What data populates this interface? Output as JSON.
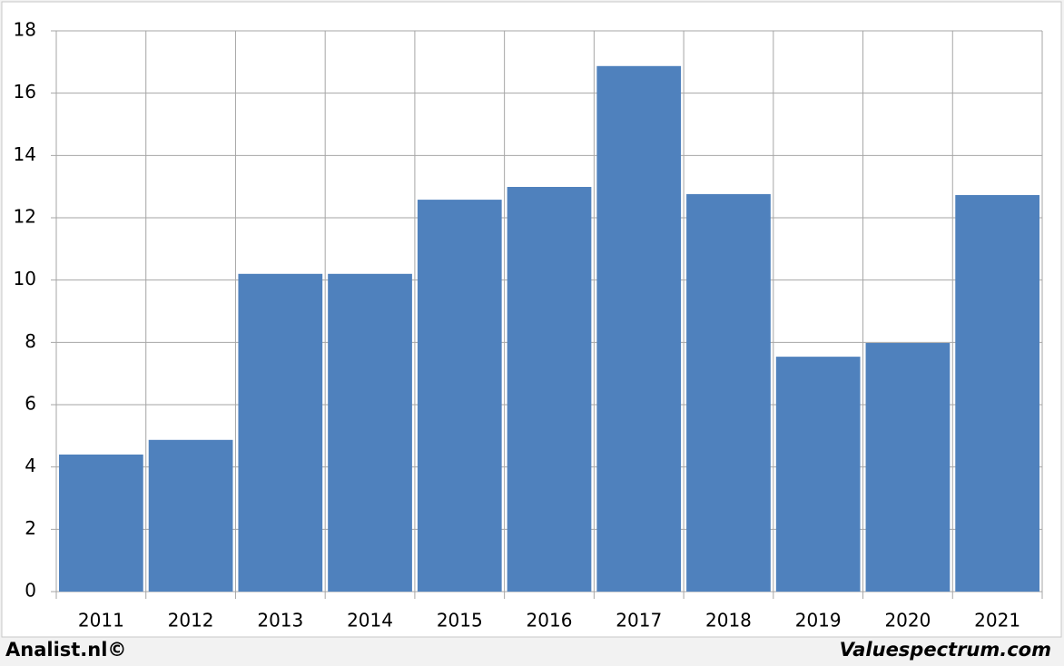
{
  "chart_data": {
    "type": "bar",
    "categories": [
      "2011",
      "2012",
      "2013",
      "2014",
      "2015",
      "2016",
      "2017",
      "2018",
      "2019",
      "2020",
      "2021"
    ],
    "values": [
      4.4,
      4.87,
      10.2,
      10.2,
      12.58,
      12.99,
      16.87,
      12.76,
      7.54,
      7.98,
      12.73
    ],
    "color": "#4f81bd",
    "ylim": [
      0,
      18
    ],
    "yticks": [
      0,
      2,
      4,
      6,
      8,
      10,
      12,
      14,
      16,
      18
    ],
    "grid": true,
    "footer_left": "Analist.nl©",
    "footer_right": "Valuespectrum.com"
  }
}
